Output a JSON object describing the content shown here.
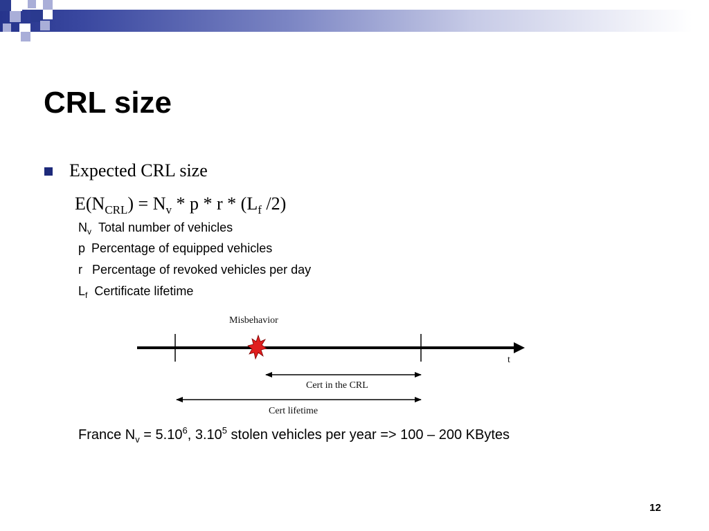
{
  "colors": {
    "accent": "#26348c",
    "squares_dark": "#2a3a8f",
    "squares_light": "#a9aed8",
    "burst": "#e01e1e"
  },
  "slide": {
    "title": "CRL size",
    "bullet": "Expected CRL size",
    "formula": {
      "lhs_prefix": "E(N",
      "lhs_sub": "CRL",
      "lhs_suffix": ") = N",
      "nv_sub": "v",
      "middle": " * p * r * (L",
      "lf_sub": "f",
      "end": " /2)"
    },
    "definitions": [
      {
        "symbol": "N",
        "sub": "v",
        "text": "Total number of vehicles"
      },
      {
        "symbol": "p",
        "sub": "",
        "text": "Percentage of equipped vehicles"
      },
      {
        "symbol": "r",
        "sub": "",
        "text": "Percentage of revoked vehicles per day"
      },
      {
        "symbol": "L",
        "sub": "f",
        "text": "Certificate lifetime"
      }
    ],
    "diagram": {
      "misbehavior_label": "Misbehavior",
      "axis_label": "t",
      "cert_crl_label": "Cert in the CRL",
      "cert_lifetime_label": "Cert lifetime"
    },
    "footer": {
      "prefix": "France N",
      "nv_sub": "v",
      "eq": " = 5.10",
      "exp1": "6",
      "comma": ", 3.10",
      "exp2": "5",
      "rest": " stolen vehicles per year => 100 – 200 KBytes"
    },
    "page_number": "12"
  }
}
